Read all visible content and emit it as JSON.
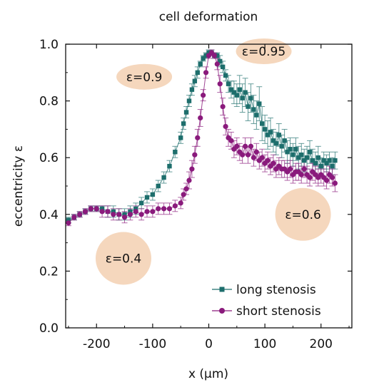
{
  "chart_data": {
    "type": "scatter",
    "title": "cell deformation",
    "xlabel": "x (µm)",
    "ylabel": "eccentricity ε",
    "xlim": [
      -255,
      255
    ],
    "ylim": [
      0,
      1.0
    ],
    "xticks": [
      -200,
      -100,
      0,
      100,
      200
    ],
    "yticks": [
      0.0,
      0.2,
      0.4,
      0.6,
      0.8,
      1.0
    ],
    "legend_position": "bottom-right",
    "grid": false,
    "series": [
      {
        "name": "long stenosis",
        "color": "#1d6e6c",
        "marker": "square",
        "x": [
          -250,
          -240,
          -230,
          -220,
          -210,
          -200,
          -190,
          -180,
          -170,
          -160,
          -150,
          -140,
          -130,
          -120,
          -110,
          -100,
          -90,
          -80,
          -70,
          -60,
          -50,
          -45,
          -40,
          -35,
          -30,
          -25,
          -20,
          -15,
          -10,
          -5,
          0,
          5,
          10,
          15,
          20,
          25,
          30,
          35,
          40,
          45,
          50,
          55,
          60,
          65,
          70,
          75,
          80,
          85,
          90,
          95,
          100,
          105,
          110,
          115,
          120,
          125,
          130,
          135,
          140,
          145,
          150,
          155,
          160,
          165,
          170,
          175,
          180,
          185,
          190,
          195,
          200,
          205,
          210,
          215,
          220,
          225
        ],
        "y": [
          0.38,
          0.39,
          0.4,
          0.41,
          0.42,
          0.42,
          0.42,
          0.41,
          0.41,
          0.4,
          0.4,
          0.41,
          0.42,
          0.44,
          0.46,
          0.47,
          0.5,
          0.53,
          0.57,
          0.62,
          0.67,
          0.72,
          0.76,
          0.8,
          0.84,
          0.87,
          0.9,
          0.93,
          0.95,
          0.96,
          0.97,
          0.97,
          0.96,
          0.96,
          0.94,
          0.92,
          0.89,
          0.86,
          0.84,
          0.83,
          0.82,
          0.84,
          0.81,
          0.83,
          0.78,
          0.81,
          0.77,
          0.75,
          0.79,
          0.72,
          0.7,
          0.68,
          0.69,
          0.66,
          0.65,
          0.68,
          0.64,
          0.66,
          0.62,
          0.63,
          0.61,
          0.63,
          0.6,
          0.61,
          0.59,
          0.6,
          0.62,
          0.59,
          0.58,
          0.6,
          0.57,
          0.59,
          0.58,
          0.59,
          0.57,
          0.59
        ],
        "error": [
          0.01,
          0.01,
          0.01,
          0.01,
          0.01,
          0.01,
          0.01,
          0.02,
          0.02,
          0.02,
          0.02,
          0.02,
          0.02,
          0.02,
          0.02,
          0.02,
          0.02,
          0.02,
          0.02,
          0.02,
          0.02,
          0.02,
          0.02,
          0.02,
          0.02,
          0.02,
          0.02,
          0.01,
          0.01,
          0.01,
          0.01,
          0.01,
          0.01,
          0.01,
          0.02,
          0.02,
          0.02,
          0.03,
          0.03,
          0.04,
          0.04,
          0.05,
          0.05,
          0.05,
          0.05,
          0.05,
          0.05,
          0.05,
          0.06,
          0.06,
          0.05,
          0.05,
          0.05,
          0.04,
          0.04,
          0.04,
          0.04,
          0.04,
          0.04,
          0.04,
          0.04,
          0.04,
          0.04,
          0.04,
          0.04,
          0.04,
          0.04,
          0.04,
          0.04,
          0.04,
          0.03,
          0.03,
          0.03,
          0.03,
          0.03,
          0.03
        ]
      },
      {
        "name": "short stenosis",
        "color": "#8a1a7c",
        "marker": "circle",
        "x": [
          -250,
          -240,
          -230,
          -220,
          -210,
          -200,
          -190,
          -180,
          -170,
          -160,
          -150,
          -140,
          -130,
          -120,
          -110,
          -100,
          -90,
          -80,
          -70,
          -60,
          -50,
          -45,
          -40,
          -35,
          -30,
          -25,
          -20,
          -15,
          -10,
          -5,
          0,
          5,
          10,
          15,
          20,
          25,
          30,
          35,
          40,
          45,
          50,
          55,
          60,
          65,
          70,
          75,
          80,
          85,
          90,
          95,
          100,
          105,
          110,
          115,
          120,
          125,
          130,
          135,
          140,
          145,
          150,
          155,
          160,
          165,
          170,
          175,
          180,
          185,
          190,
          195,
          200,
          205,
          210,
          215,
          220,
          225
        ],
        "y": [
          0.37,
          0.39,
          0.4,
          0.41,
          0.42,
          0.42,
          0.41,
          0.41,
          0.4,
          0.4,
          0.39,
          0.4,
          0.41,
          0.4,
          0.41,
          0.41,
          0.42,
          0.42,
          0.42,
          0.43,
          0.44,
          0.47,
          0.49,
          0.52,
          0.56,
          0.61,
          0.67,
          0.74,
          0.82,
          0.9,
          0.96,
          0.97,
          0.96,
          0.93,
          0.86,
          0.78,
          0.71,
          0.67,
          0.66,
          0.63,
          0.64,
          0.62,
          0.61,
          0.64,
          0.61,
          0.64,
          0.6,
          0.62,
          0.59,
          0.6,
          0.58,
          0.59,
          0.57,
          0.58,
          0.56,
          0.57,
          0.56,
          0.56,
          0.55,
          0.56,
          0.54,
          0.55,
          0.55,
          0.54,
          0.56,
          0.54,
          0.53,
          0.55,
          0.54,
          0.53,
          0.54,
          0.53,
          0.52,
          0.54,
          0.53,
          0.51
        ],
        "error": [
          0.01,
          0.01,
          0.01,
          0.01,
          0.01,
          0.01,
          0.02,
          0.02,
          0.02,
          0.02,
          0.02,
          0.02,
          0.02,
          0.02,
          0.02,
          0.02,
          0.02,
          0.02,
          0.02,
          0.02,
          0.02,
          0.02,
          0.02,
          0.03,
          0.03,
          0.03,
          0.03,
          0.03,
          0.02,
          0.02,
          0.01,
          0.01,
          0.01,
          0.02,
          0.03,
          0.03,
          0.03,
          0.03,
          0.03,
          0.03,
          0.03,
          0.03,
          0.03,
          0.03,
          0.03,
          0.03,
          0.03,
          0.03,
          0.03,
          0.03,
          0.03,
          0.03,
          0.03,
          0.03,
          0.03,
          0.03,
          0.03,
          0.03,
          0.03,
          0.03,
          0.03,
          0.03,
          0.03,
          0.03,
          0.03,
          0.03,
          0.03,
          0.03,
          0.03,
          0.03,
          0.03,
          0.03,
          0.03,
          0.03,
          0.03,
          0.03
        ]
      }
    ],
    "annotations": [
      {
        "text": "ε=0.9",
        "x": -115,
        "y": 0.885,
        "shape": "ellipse",
        "color": "#f5d7bd"
      },
      {
        "text": "ε=0.95",
        "x": 98,
        "y": 0.975,
        "shape": "ellipse",
        "color": "#f5d7bd"
      },
      {
        "text": "ε=0.6",
        "x": 168,
        "y": 0.4,
        "shape": "circle",
        "color": "#f5d7bd"
      },
      {
        "text": "ε=0.4",
        "x": -152,
        "y": 0.245,
        "shape": "circle",
        "color": "#f5d7bd"
      }
    ]
  }
}
